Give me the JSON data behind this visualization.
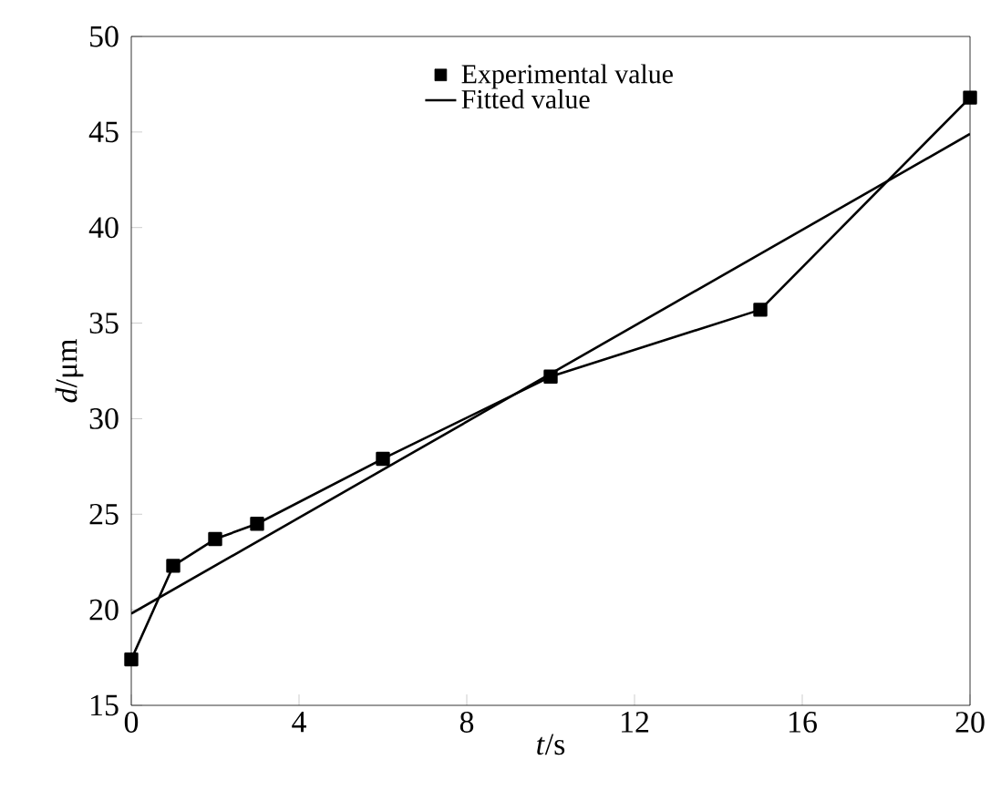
{
  "chart_data": {
    "type": "line",
    "xlabel": "*t*/s",
    "ylabel": "*d*/μm",
    "xlim": [
      0,
      20
    ],
    "ylim": [
      15,
      50
    ],
    "xticks": [
      0,
      4,
      8,
      12,
      16,
      20
    ],
    "yticks": [
      15,
      20,
      25,
      30,
      35,
      40,
      45,
      50
    ],
    "legend": "top",
    "grid": false,
    "series": [
      {
        "name": "Experimental value",
        "color": "#000000",
        "marker": "square",
        "x": [
          0,
          1,
          2,
          3,
          6,
          10,
          15,
          20
        ],
        "values": [
          17.4,
          22.3,
          23.7,
          24.5,
          27.9,
          32.2,
          35.7,
          46.8
        ]
      },
      {
        "name": "Fitted value",
        "color": "#000000",
        "marker": "none",
        "x": [
          0,
          20
        ],
        "values": [
          19.8,
          44.9
        ]
      }
    ]
  }
}
